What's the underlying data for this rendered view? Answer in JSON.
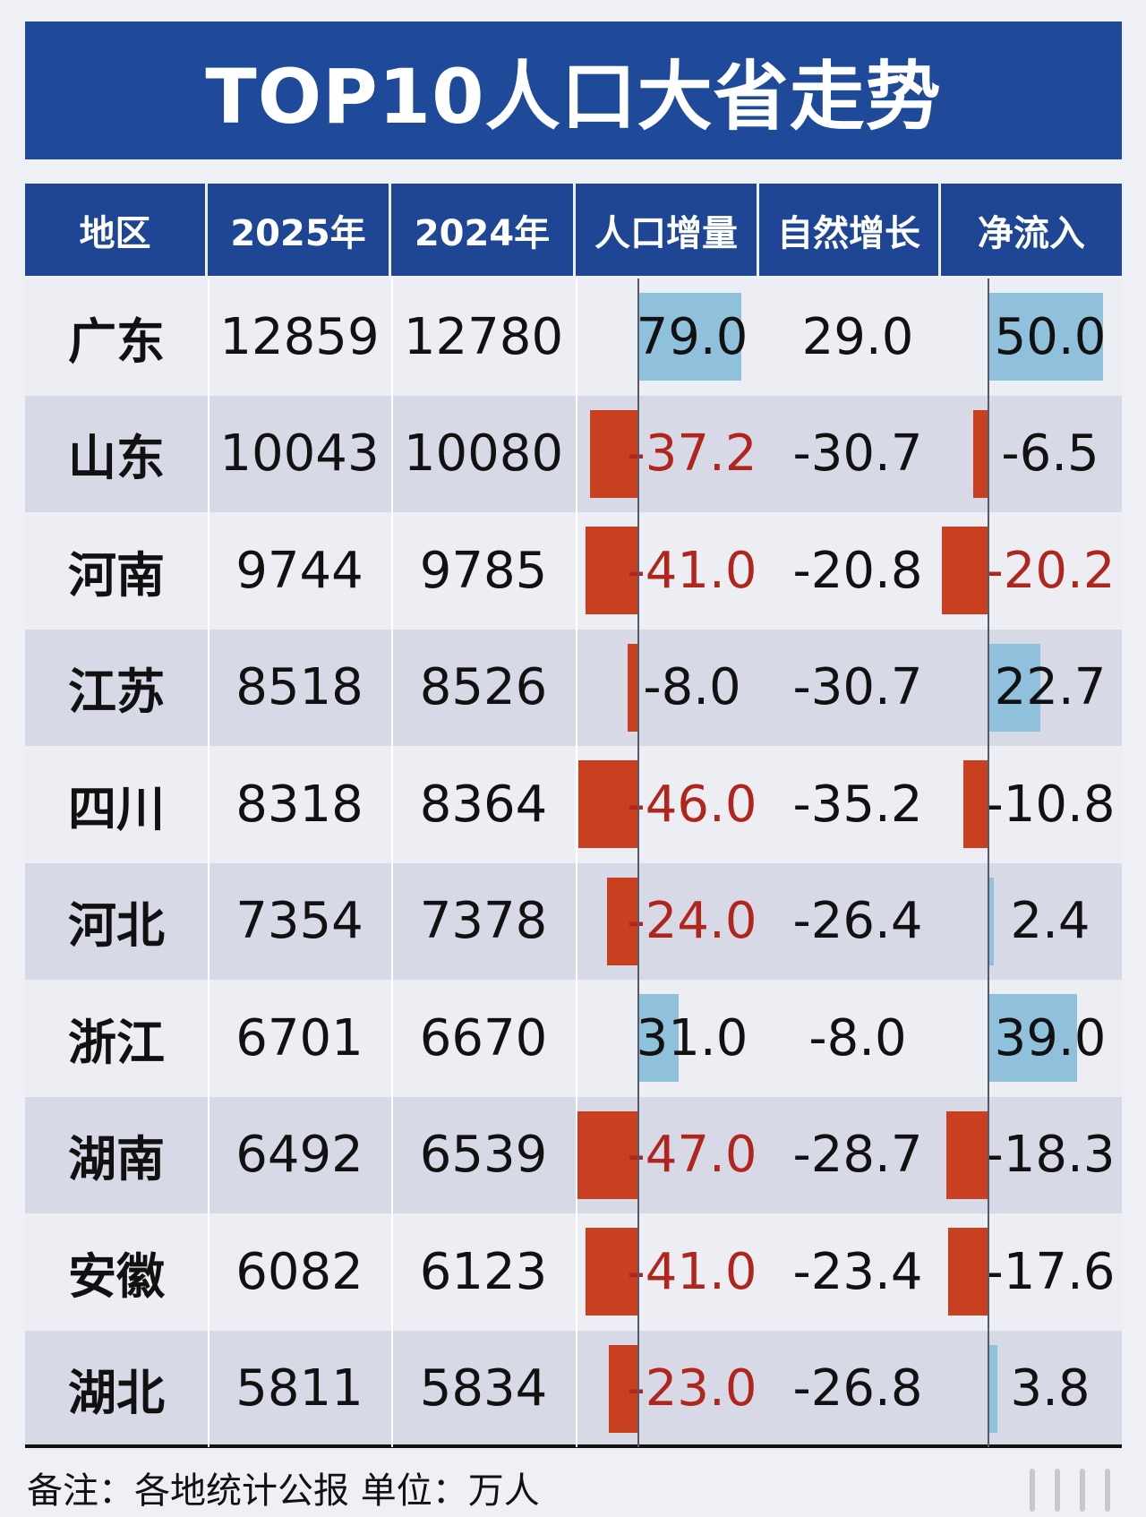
{
  "title": "TOP10人口大省走势",
  "chart_data": {
    "type": "table",
    "title": "TOP10人口大省走势",
    "columns": [
      "地区",
      "2025年",
      "2024年",
      "人口增量",
      "自然增长",
      "净流入"
    ],
    "rows": [
      {
        "region": "广东",
        "y2025": "12859",
        "y2024": "12780",
        "increase": 79.0,
        "natural": "29.0",
        "net": 50.0
      },
      {
        "region": "山东",
        "y2025": "10043",
        "y2024": "10080",
        "increase": -37.2,
        "natural": "-30.7",
        "net": -6.5
      },
      {
        "region": "河南",
        "y2025": "9744",
        "y2024": "9785",
        "increase": -41.0,
        "natural": "-20.8",
        "net": -20.2
      },
      {
        "region": "江苏",
        "y2025": "8518",
        "y2024": "8526",
        "increase": -8.0,
        "natural": "-30.7",
        "net": 22.7
      },
      {
        "region": "四川",
        "y2025": "8318",
        "y2024": "8364",
        "increase": -46.0,
        "natural": "-35.2",
        "net": -10.8
      },
      {
        "region": "河北",
        "y2025": "7354",
        "y2024": "7378",
        "increase": -24.0,
        "natural": "-26.4",
        "net": 2.4
      },
      {
        "region": "浙江",
        "y2025": "6701",
        "y2024": "6670",
        "increase": 31.0,
        "natural": "-8.0",
        "net": 39.0
      },
      {
        "region": "湖南",
        "y2025": "6492",
        "y2024": "6539",
        "increase": -47.0,
        "natural": "-28.7",
        "net": -18.3
      },
      {
        "region": "安徽",
        "y2025": "6082",
        "y2024": "6123",
        "increase": -41.0,
        "natural": "-23.4",
        "net": -17.6
      },
      {
        "region": "湖北",
        "y2025": "5811",
        "y2024": "5834",
        "increase": -23.0,
        "natural": "-26.8",
        "net": 3.8
      }
    ],
    "colors": {
      "positive": "#8fc0dc",
      "negative": "#c8401f",
      "negative_text": "#b0261c",
      "header": "#1e4694"
    }
  },
  "footer": "备注：各地统计公报  单位：万人"
}
